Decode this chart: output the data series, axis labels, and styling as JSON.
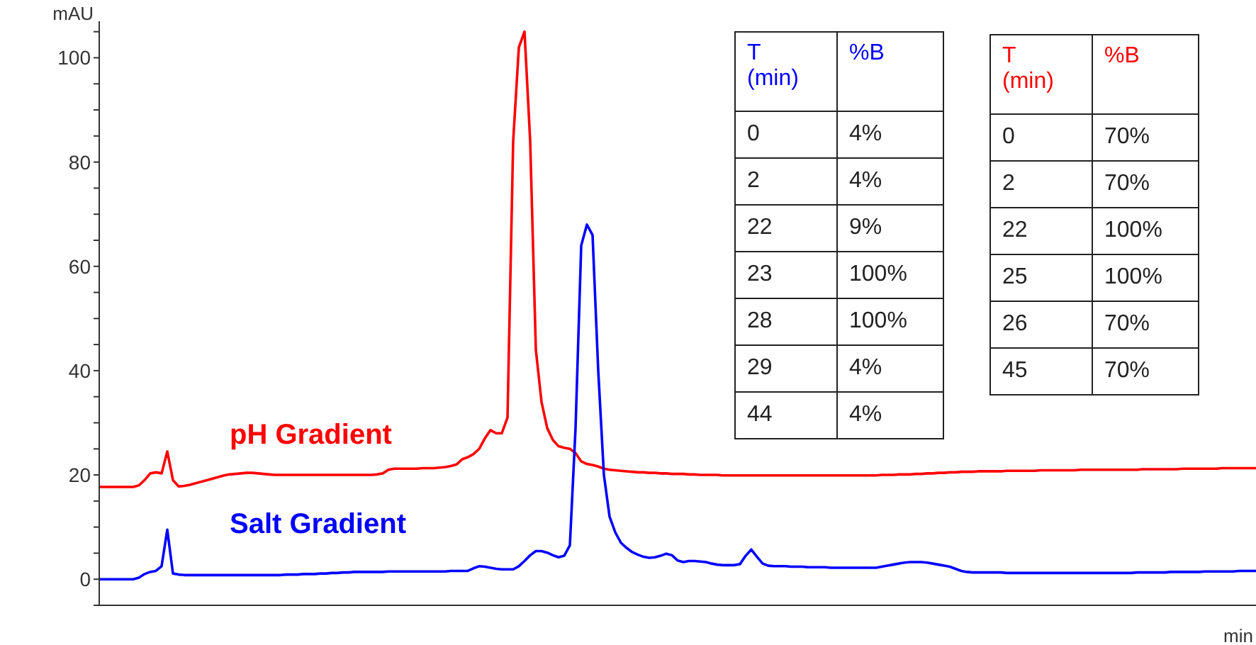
{
  "chart_data": [
    {
      "type": "line",
      "xlabel": "min",
      "ylabel": "mAU",
      "ylim": [
        -5,
        107
      ],
      "yticks": [
        {
          "value": -5,
          "label": null
        },
        0,
        {
          "value": 5,
          "label": null
        },
        {
          "value": 10,
          "label": null
        },
        {
          "value": 15,
          "label": null
        },
        20,
        {
          "value": 25,
          "label": null
        },
        {
          "value": 30,
          "label": null
        },
        {
          "value": 35,
          "label": null
        },
        40,
        {
          "value": 45,
          "label": null
        },
        {
          "value": 50,
          "label": null
        },
        {
          "value": 55,
          "label": null
        },
        60,
        {
          "value": 65,
          "label": null
        },
        {
          "value": 70,
          "label": null
        },
        {
          "value": 75,
          "label": null
        },
        80,
        {
          "value": 85,
          "label": null
        },
        {
          "value": 90,
          "label": null
        },
        {
          "value": 95,
          "label": null
        },
        100,
        {
          "value": 105,
          "label": null
        }
      ],
      "categories": [
        null,
        null,
        null,
        null,
        null,
        null,
        null,
        null,
        null,
        null,
        null,
        null,
        null,
        null,
        null,
        null,
        null,
        null,
        null,
        null,
        null,
        null,
        null,
        null,
        null,
        null,
        null,
        null,
        null,
        null,
        null,
        null,
        null,
        null,
        null,
        null,
        null,
        null,
        null,
        null,
        null,
        null,
        null,
        null,
        null,
        null,
        null,
        null,
        null,
        null,
        null,
        null,
        null,
        null,
        null,
        null,
        null,
        null,
        null,
        null,
        null,
        null,
        null,
        null,
        null,
        null,
        null,
        null,
        null,
        null,
        null,
        null,
        null,
        null,
        null,
        null,
        null,
        null,
        null,
        null,
        null,
        null,
        null,
        null,
        null,
        null,
        null,
        null,
        null,
        null,
        null,
        null,
        null,
        null,
        null,
        null,
        null,
        null,
        null,
        null,
        null,
        null,
        null,
        null,
        null,
        null,
        null,
        null,
        null,
        null,
        null,
        null,
        null,
        null,
        null,
        null,
        null,
        null,
        null,
        null,
        null,
        null,
        null,
        null,
        null,
        null,
        null,
        null,
        null,
        null,
        null,
        null,
        null,
        null,
        null,
        null,
        null,
        null,
        null,
        null,
        null,
        null,
        null,
        null,
        null,
        null,
        null,
        null,
        null,
        null,
        null,
        null,
        null,
        null,
        null,
        null,
        null,
        null,
        null,
        null,
        null,
        null,
        null,
        null,
        null,
        null,
        null,
        null,
        null,
        null,
        null,
        null,
        null,
        null,
        null,
        null,
        null,
        null,
        null,
        null,
        null,
        null,
        null,
        null,
        null,
        null,
        null,
        null,
        null,
        null,
        null,
        null,
        null,
        null,
        null,
        null,
        null,
        null,
        null,
        null,
        null,
        null,
        null,
        null,
        null
      ],
      "marker": "none",
      "line_style": "solid",
      "series": [
        {
          "name": "pH Gradient",
          "color": "#ff0000",
          "values": [
            17.7,
            17.7,
            17.7,
            17.7,
            17.7,
            17.7,
            17.7,
            18.0,
            19.0,
            20.3,
            20.5,
            20.3,
            24.5,
            19.0,
            17.8,
            17.9,
            18.1,
            18.4,
            18.7,
            19.0,
            19.3,
            19.6,
            19.9,
            20.1,
            20.2,
            20.3,
            20.4,
            20.4,
            20.3,
            20.2,
            20.1,
            20.0,
            20.0,
            20.0,
            20.0,
            20.0,
            20.0,
            20.0,
            20.0,
            20.0,
            20.0,
            20.0,
            20.0,
            20.0,
            20.0,
            20.0,
            20.0,
            20.0,
            20.0,
            20.1,
            20.3,
            21.0,
            21.2,
            21.2,
            21.2,
            21.2,
            21.2,
            21.3,
            21.3,
            21.3,
            21.4,
            21.5,
            21.7,
            22.0,
            23.0,
            23.4,
            24.0,
            25.0,
            27.0,
            28.6,
            28.0,
            28.0,
            31,
            84,
            102,
            105,
            84,
            44,
            34,
            29,
            26.7,
            25.5,
            25.2,
            25.0,
            24.2,
            22.6,
            22.1,
            21.9,
            21.6,
            21.2,
            21.0,
            20.9,
            20.8,
            20.7,
            20.6,
            20.5,
            20.5,
            20.4,
            20.4,
            20.3,
            20.3,
            20.2,
            20.2,
            20.2,
            20.1,
            20.1,
            20.0,
            20.0,
            20.0,
            20.0,
            19.9,
            19.9,
            19.9,
            19.9,
            19.9,
            19.9,
            19.9,
            19.9,
            19.9,
            19.9,
            19.9,
            19.9,
            19.9,
            19.9,
            19.9,
            19.9,
            19.9,
            19.9,
            19.9,
            19.9,
            19.9,
            19.9,
            19.9,
            19.9,
            19.9,
            19.9,
            19.9,
            19.9,
            20.0,
            20.0,
            20.0,
            20.1,
            20.1,
            20.1,
            20.2,
            20.2,
            20.3,
            20.3,
            20.4,
            20.4,
            20.5,
            20.5,
            20.6,
            20.6,
            20.6,
            20.7,
            20.7,
            20.7,
            20.7,
            20.7,
            20.8,
            20.8,
            20.8,
            20.8,
            20.8,
            20.8,
            20.9,
            20.9,
            20.9,
            20.9,
            20.9,
            20.9,
            20.9,
            21.0,
            21.0,
            21.0,
            21.0,
            21.0,
            21.0,
            21.0,
            21.0,
            21.0,
            21.0,
            21.0,
            21.1,
            21.1,
            21.1,
            21.1,
            21.1,
            21.1,
            21.1,
            21.2,
            21.2,
            21.2,
            21.2,
            21.2,
            21.2,
            21.2,
            21.3,
            21.3,
            21.3,
            21.3,
            21.3,
            21.3,
            21.3
          ]
        },
        {
          "name": "Salt Gradient",
          "color": "#0000ff",
          "values": [
            0,
            0,
            0,
            0,
            0,
            0,
            0,
            0.3,
            1.0,
            1.4,
            1.6,
            2.5,
            9.5,
            1.1,
            0.9,
            0.8,
            0.8,
            0.8,
            0.8,
            0.8,
            0.8,
            0.8,
            0.8,
            0.8,
            0.8,
            0.8,
            0.8,
            0.8,
            0.8,
            0.8,
            0.8,
            0.8,
            0.8,
            0.9,
            0.9,
            0.9,
            1.0,
            1.0,
            1.0,
            1.1,
            1.1,
            1.2,
            1.2,
            1.3,
            1.3,
            1.4,
            1.4,
            1.4,
            1.4,
            1.4,
            1.4,
            1.5,
            1.5,
            1.5,
            1.5,
            1.5,
            1.5,
            1.5,
            1.5,
            1.5,
            1.5,
            1.5,
            1.6,
            1.6,
            1.6,
            1.6,
            2.1,
            2.5,
            2.4,
            2.2,
            2.0,
            1.9,
            1.9,
            1.9,
            2.5,
            3.5,
            4.6,
            5.4,
            5.4,
            5.1,
            4.6,
            4.2,
            4.5,
            6.5,
            29,
            64,
            68,
            66,
            40,
            20,
            12,
            9,
            7,
            6,
            5.2,
            4.7,
            4.3,
            4.1,
            4.2,
            4.5,
            4.9,
            4.6,
            3.6,
            3.3,
            3.5,
            3.5,
            3.4,
            3.3,
            3.0,
            2.8,
            2.7,
            2.7,
            2.7,
            2.9,
            4.5,
            5.7,
            4.3,
            3.0,
            2.6,
            2.5,
            2.5,
            2.5,
            2.4,
            2.4,
            2.4,
            2.3,
            2.3,
            2.3,
            2.3,
            2.2,
            2.2,
            2.2,
            2.2,
            2.2,
            2.2,
            2.2,
            2.2,
            2.2,
            2.4,
            2.6,
            2.8,
            3.0,
            3.2,
            3.3,
            3.3,
            3.3,
            3.2,
            3.0,
            2.8,
            2.6,
            2.4,
            2.0,
            1.6,
            1.4,
            1.3,
            1.3,
            1.3,
            1.3,
            1.3,
            1.3,
            1.2,
            1.2,
            1.2,
            1.2,
            1.2,
            1.2,
            1.2,
            1.2,
            1.2,
            1.2,
            1.2,
            1.2,
            1.2,
            1.2,
            1.2,
            1.2,
            1.2,
            1.2,
            1.2,
            1.2,
            1.2,
            1.2,
            1.2,
            1.3,
            1.3,
            1.3,
            1.3,
            1.3,
            1.3,
            1.4,
            1.4,
            1.4,
            1.4,
            1.4,
            1.4,
            1.5,
            1.5,
            1.5,
            1.5,
            1.5,
            1.5,
            1.6,
            1.6,
            1.6,
            1.6
          ]
        }
      ]
    },
    {
      "type": "other",
      "xlabel": "T (min)",
      "ylabel": "%B",
      "color": "#0000ff",
      "categories": [
        "0",
        "2",
        "22",
        "23",
        "28",
        "29",
        "44"
      ],
      "value_labels": [
        "4%",
        "4%",
        "9%",
        "100%",
        "100%",
        "4%",
        "4%"
      ]
    },
    {
      "type": "other",
      "xlabel": "T (min)",
      "ylabel": "%B",
      "color": "#ff0000",
      "categories": [
        "0",
        "2",
        "22",
        "25",
        "26",
        "45"
      ],
      "value_labels": [
        "70%",
        "70%",
        "100%",
        "100%",
        "70%",
        "70%"
      ]
    }
  ]
}
